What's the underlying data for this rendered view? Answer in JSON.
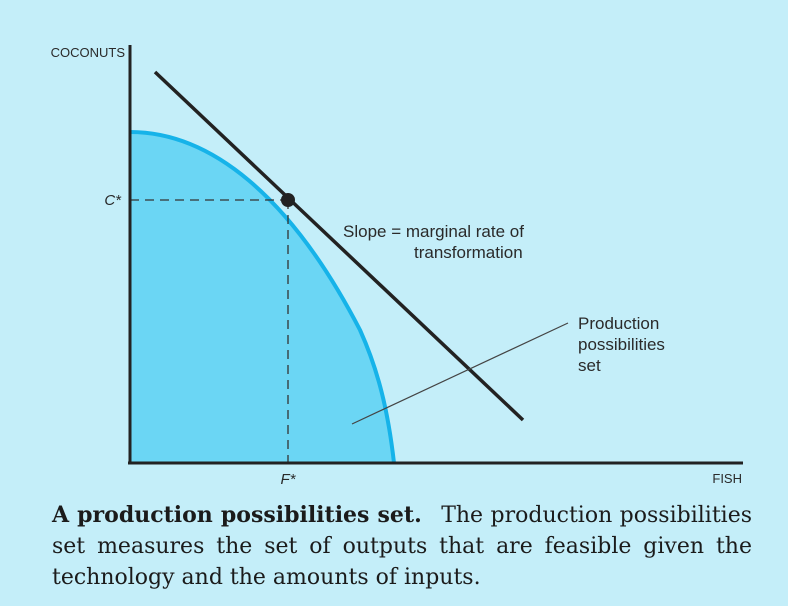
{
  "figure": {
    "y_axis_label": "COCONUTS",
    "x_axis_label": "FISH",
    "c_star_label": "C*",
    "f_star_label": "F*",
    "slope_label_line1": "Slope = marginal rate of",
    "slope_label_line2": "transformation",
    "pps_label_line1": "Production",
    "pps_label_line2": "possibilities",
    "pps_label_line3": "set",
    "colors": {
      "background": "#c4eef9",
      "region_fill": "#6bd6f4",
      "frontier": "#16b3e9",
      "axes_and_lines": "#222222"
    }
  },
  "caption": {
    "title": "A production possibilities set.",
    "body": "The production possibilities set measures the set of outputs that are feasible given the technology and the amounts of inputs."
  }
}
